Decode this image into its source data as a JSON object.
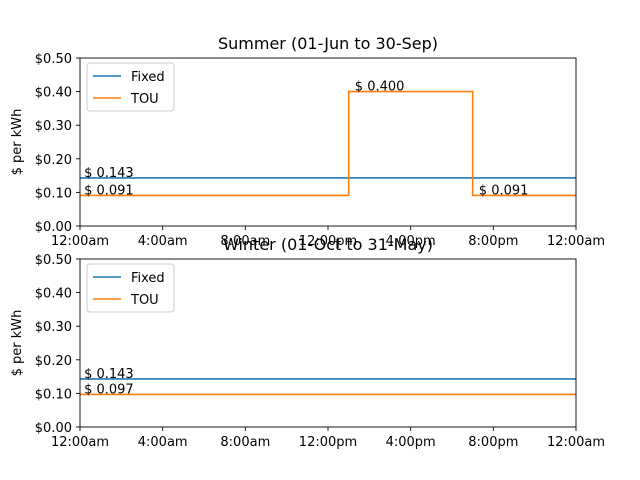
{
  "chart_data": [
    {
      "type": "line",
      "title": "Summer (01-Jun to 30-Sep)",
      "xlabel": "",
      "ylabel": "$ per kWh",
      "xlim": [
        0,
        24
      ],
      "ylim": [
        0,
        0.5
      ],
      "x_ticks": [
        0,
        4,
        8,
        12,
        16,
        20,
        24
      ],
      "x_tick_labels": [
        "12:00am",
        "4:00am",
        "8:00am",
        "12:00pm",
        "4:00pm",
        "8:00pm",
        "12:00am"
      ],
      "y_ticks": [
        0,
        0.1,
        0.2,
        0.3,
        0.4,
        0.5
      ],
      "y_tick_labels": [
        "$0.00",
        "$0.10",
        "$0.20",
        "$0.30",
        "$0.40",
        "$0.50"
      ],
      "grid": false,
      "legend_position": "upper-left",
      "series": [
        {
          "name": "Fixed",
          "color": "#1f77b4",
          "x": [
            0,
            24
          ],
          "y": [
            0.143,
            0.143
          ]
        },
        {
          "name": "TOU",
          "color": "#ff7f0e",
          "x": [
            0,
            13,
            13,
            19,
            19,
            24
          ],
          "y": [
            0.091,
            0.091,
            0.4,
            0.4,
            0.091,
            0.091
          ]
        }
      ],
      "annotations": [
        {
          "text": "$ 0.143",
          "x": 0.1,
          "y": 0.143
        },
        {
          "text": "$ 0.091",
          "x": 0.1,
          "y": 0.091
        },
        {
          "text": "$ 0.400",
          "x": 13.2,
          "y": 0.4
        },
        {
          "text": "$ 0.091",
          "x": 19.2,
          "y": 0.091
        }
      ]
    },
    {
      "type": "line",
      "title": "Winter (01-Oct to 31-May)",
      "xlabel": "",
      "ylabel": "$ per kWh",
      "xlim": [
        0,
        24
      ],
      "ylim": [
        0,
        0.5
      ],
      "x_ticks": [
        0,
        4,
        8,
        12,
        16,
        20,
        24
      ],
      "x_tick_labels": [
        "12:00am",
        "4:00am",
        "8:00am",
        "12:00pm",
        "4:00pm",
        "8:00pm",
        "12:00am"
      ],
      "y_ticks": [
        0,
        0.1,
        0.2,
        0.3,
        0.4,
        0.5
      ],
      "y_tick_labels": [
        "$0.00",
        "$0.10",
        "$0.20",
        "$0.30",
        "$0.40",
        "$0.50"
      ],
      "grid": false,
      "legend_position": "upper-left",
      "series": [
        {
          "name": "Fixed",
          "color": "#1f77b4",
          "x": [
            0,
            24
          ],
          "y": [
            0.143,
            0.143
          ]
        },
        {
          "name": "TOU",
          "color": "#ff7f0e",
          "x": [
            0,
            24
          ],
          "y": [
            0.097,
            0.097
          ]
        }
      ],
      "annotations": [
        {
          "text": "$ 0.143",
          "x": 0.1,
          "y": 0.143
        },
        {
          "text": "$ 0.097",
          "x": 0.1,
          "y": 0.097
        }
      ]
    }
  ]
}
